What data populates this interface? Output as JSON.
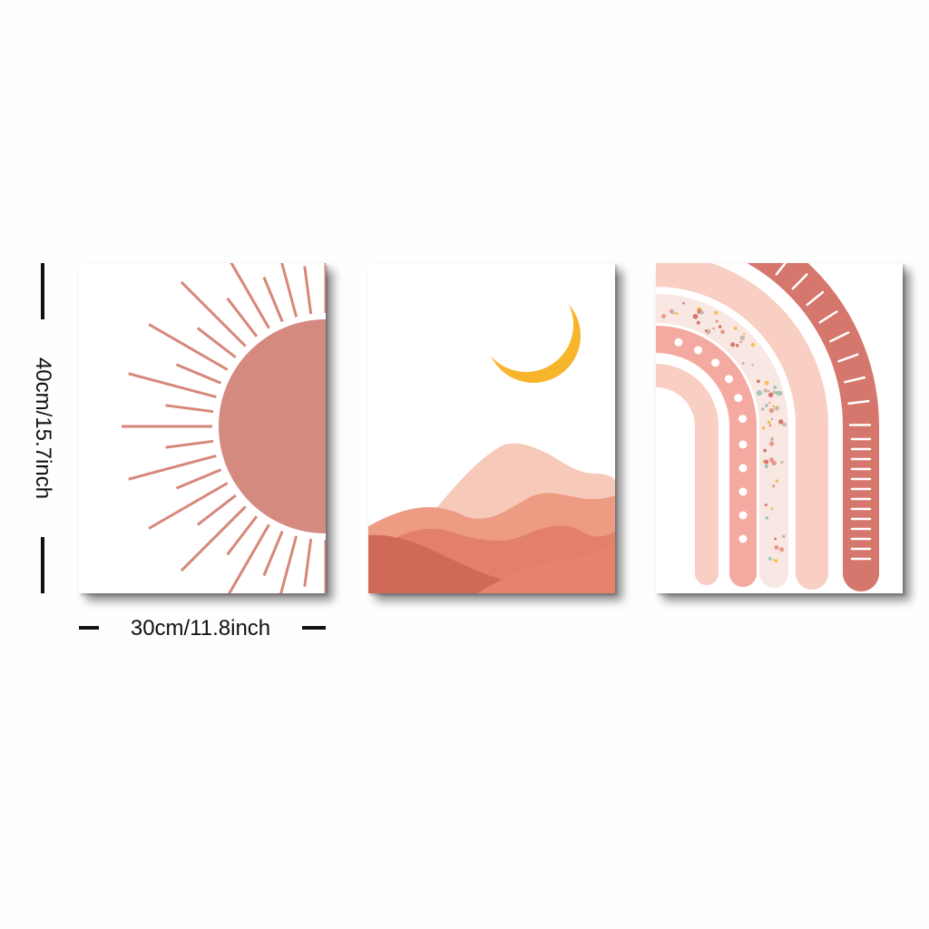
{
  "dimensions": {
    "height_label": "40cm/15.7inch",
    "width_label": "30cm/11.8inch"
  },
  "panels": [
    {
      "motif": "sun-with-rays",
      "colors": [
        "#d58a80",
        "#d7877a"
      ]
    },
    {
      "motif": "crescent-moon-over-mountains",
      "colors": [
        "#f7b52c",
        "#f6c9b8",
        "#ee9b84",
        "#e3806a",
        "#cf6a58"
      ]
    },
    {
      "motif": "boho-rainbow",
      "colors": [
        "#d5776d",
        "#f8cfc2",
        "#f4aaa0",
        "#f9e7e3"
      ]
    }
  ]
}
